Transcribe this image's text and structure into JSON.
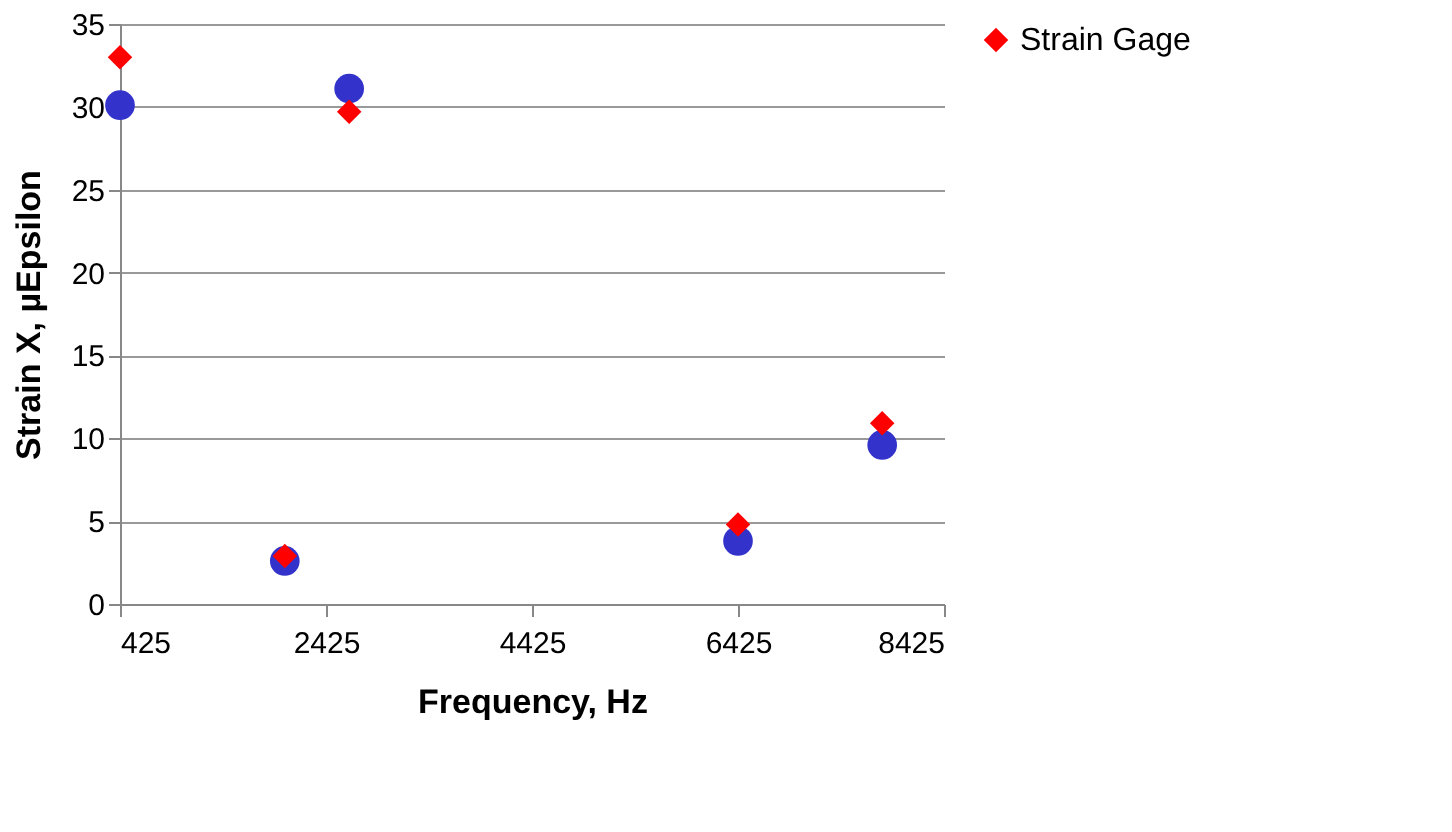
{
  "chart_data": {
    "type": "scatter",
    "xlabel": "Frequency, Hz",
    "ylabel": "Strain X, µEpsilon",
    "xlim": [
      425,
      8425
    ],
    "xticks": [
      425,
      2425,
      4425,
      6425,
      8425
    ],
    "ylim": [
      0,
      35
    ],
    "yticks": [
      0,
      5,
      10,
      15,
      20,
      25,
      30,
      35
    ],
    "grid": "y",
    "legend": "right",
    "x": [
      425,
      2025,
      2650,
      6425,
      7825
    ],
    "series": [
      {
        "color": "#3333cc",
        "marker": "circle",
        "values": [
          30.1,
          2.6,
          31.1,
          3.8,
          9.6
        ]
      },
      {
        "name": "Strain Gage",
        "color": "#ff0000",
        "marker": "diamond",
        "values": [
          33,
          2.9,
          29.7,
          4.8,
          10.9
        ]
      }
    ]
  }
}
